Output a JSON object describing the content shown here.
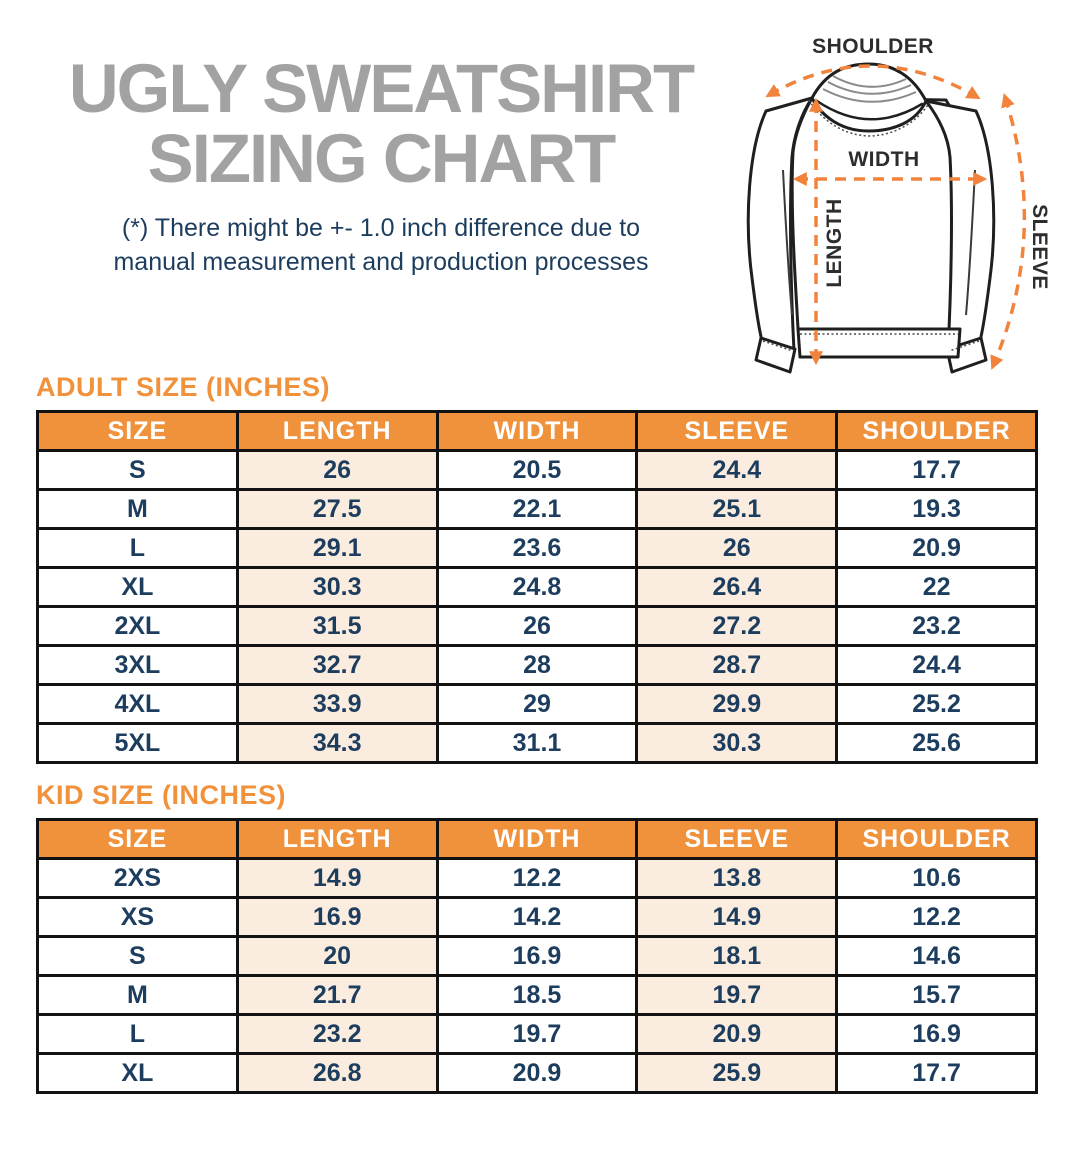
{
  "page_title": {
    "line1": "UGLY SWEATSHIRT",
    "line2": "SIZING CHART"
  },
  "disclaimer": {
    "line1": "(*) There might be +- 1.0 inch difference due to",
    "line2": "manual measurement and production processes"
  },
  "diagram": {
    "shoulder_label": "SHOULDER",
    "width_label": "WIDTH",
    "length_label": "LENGTH",
    "sleeve_label": "SLEEVE"
  },
  "colors": {
    "accent_orange": "#F0913C",
    "row_highlight_peach": "#FAECDE",
    "text_navy": "#1D3D5E",
    "title_gray": "#A2A2A2",
    "arrow_orange": "#F2833C"
  },
  "chart_data": [
    {
      "type": "table",
      "title": "ADULT SIZE (INCHES)",
      "columns": [
        "SIZE",
        "LENGTH",
        "WIDTH",
        "SLEEVE",
        "SHOULDER"
      ],
      "highlight_columns": [
        1,
        3
      ],
      "rows": [
        [
          "S",
          "26",
          "20.5",
          "24.4",
          "17.7"
        ],
        [
          "M",
          "27.5",
          "22.1",
          "25.1",
          "19.3"
        ],
        [
          "L",
          "29.1",
          "23.6",
          "26",
          "20.9"
        ],
        [
          "XL",
          "30.3",
          "24.8",
          "26.4",
          "22"
        ],
        [
          "2XL",
          "31.5",
          "26",
          "27.2",
          "23.2"
        ],
        [
          "3XL",
          "32.7",
          "28",
          "28.7",
          "24.4"
        ],
        [
          "4XL",
          "33.9",
          "29",
          "29.9",
          "25.2"
        ],
        [
          "5XL",
          "34.3",
          "31.1",
          "30.3",
          "25.6"
        ]
      ]
    },
    {
      "type": "table",
      "title": "KID SIZE (INCHES)",
      "columns": [
        "SIZE",
        "LENGTH",
        "WIDTH",
        "SLEEVE",
        "SHOULDER"
      ],
      "highlight_columns": [
        1,
        3
      ],
      "rows": [
        [
          "2XS",
          "14.9",
          "12.2",
          "13.8",
          "10.6"
        ],
        [
          "XS",
          "16.9",
          "14.2",
          "14.9",
          "12.2"
        ],
        [
          "S",
          "20",
          "16.9",
          "18.1",
          "14.6"
        ],
        [
          "M",
          "21.7",
          "18.5",
          "19.7",
          "15.7"
        ],
        [
          "L",
          "23.2",
          "19.7",
          "20.9",
          "16.9"
        ],
        [
          "XL",
          "26.8",
          "20.9",
          "25.9",
          "17.7"
        ]
      ]
    }
  ]
}
